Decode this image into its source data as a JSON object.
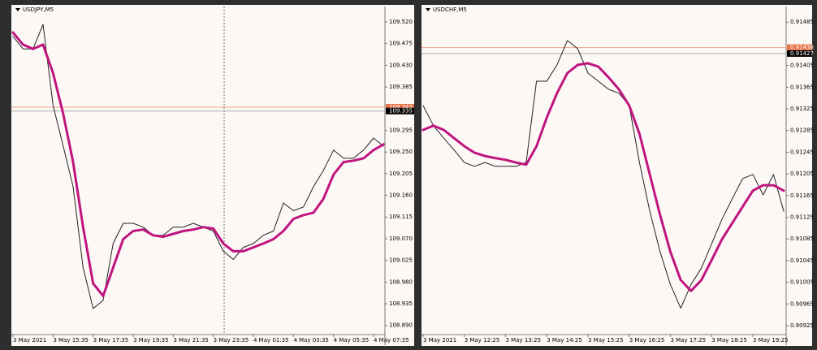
{
  "chart_data": [
    {
      "type": "line",
      "title": "USDJPY,M5",
      "categories": [
        "3 May 2021",
        null,
        null,
        null,
        "3 May 15:35",
        null,
        null,
        null,
        "3 May 17:35",
        null,
        null,
        null,
        "3 May 19:35",
        null,
        null,
        null,
        "3 May 21:35",
        null,
        null,
        null,
        "3 May 23:35",
        null,
        null,
        null,
        "4 May 01:35",
        null,
        null,
        null,
        "4 May 03:35",
        null,
        null,
        null,
        "4 May 05:35",
        null,
        null,
        null,
        "4 May 07:35",
        null
      ],
      "series": [
        {
          "color": "#222222",
          "values": [
            109.49,
            109.464,
            109.464,
            109.515,
            109.347,
            109.263,
            109.178,
            109.01,
            108.925,
            108.942,
            109.06,
            109.102,
            109.102,
            109.094,
            109.077,
            109.077,
            109.094,
            109.094,
            109.102,
            109.094,
            109.086,
            109.044,
            109.027,
            109.052,
            109.06,
            109.077,
            109.086,
            109.144,
            109.128,
            109.136,
            109.178,
            109.212,
            109.254,
            109.237,
            109.237,
            109.254,
            109.279,
            109.262
          ]
        },
        {
          "color": "#c0147f",
          "values": [
            109.498,
            109.473,
            109.464,
            109.473,
            109.414,
            109.33,
            109.229,
            109.094,
            108.977,
            108.951,
            109.01,
            109.069,
            109.086,
            109.089,
            109.077,
            109.074,
            109.08,
            109.086,
            109.089,
            109.094,
            109.091,
            109.06,
            109.044,
            109.044,
            109.052,
            109.06,
            109.069,
            109.086,
            109.111,
            109.119,
            109.124,
            109.153,
            109.203,
            109.229,
            109.232,
            109.237,
            109.254,
            109.266
          ]
        }
      ],
      "levels": [
        {
          "value": 109.343,
          "color": "#e8734a"
        },
        {
          "value": 109.335,
          "color": "#000000"
        }
      ],
      "ylim": [
        108.871,
        109.552
      ],
      "yticks": [
        {
          "value": 109.52,
          "label": "109.520"
        },
        109.475,
        {
          "value": 109.43,
          "label": "109.430"
        },
        109.385,
        109.295,
        {
          "value": 109.25,
          "label": "109.250"
        },
        109.205,
        {
          "value": 109.16,
          "label": "109.160"
        },
        109.115,
        {
          "value": 109.07,
          "label": "109.070"
        },
        109.025,
        {
          "value": 108.98,
          "label": "108.980"
        },
        108.935,
        {
          "value": 108.89,
          "label": "108.890"
        }
      ]
    },
    {
      "type": "line",
      "title": "USDCHF,M5",
      "categories": [
        "3 May 2021",
        null,
        null,
        null,
        "3 May 12:25",
        null,
        null,
        null,
        "3 May 13:25",
        null,
        null,
        null,
        "3 May 14:25",
        null,
        null,
        null,
        "3 May 15:25",
        null,
        null,
        null,
        "3 May 16:25",
        null,
        null,
        null,
        "3 May 17:25",
        null,
        null,
        null,
        "3 May 18:25",
        null,
        null,
        null,
        "3 May 19:25",
        null,
        null,
        null
      ],
      "series": [
        {
          "color": "#222222",
          "values": [
            0.91331,
            0.91294,
            0.91271,
            0.91249,
            0.91226,
            0.91219,
            0.91226,
            0.91219,
            0.91219,
            0.91219,
            0.91226,
            0.91376,
            0.91376,
            0.91406,
            0.91451,
            0.91436,
            0.91391,
            0.91376,
            0.91361,
            0.91354,
            0.91331,
            0.91226,
            0.91136,
            0.91061,
            0.91001,
            0.90957,
            0.91001,
            0.91031,
            0.91076,
            0.91121,
            0.91159,
            0.91196,
            0.91204,
            0.91166,
            0.91204,
            0.91136
          ]
        },
        {
          "color": "#c0147f",
          "values": [
            0.91286,
            0.91294,
            0.91286,
            0.91271,
            0.91256,
            0.91244,
            0.91238,
            0.91234,
            0.91231,
            0.91226,
            0.91222,
            0.91256,
            0.91309,
            0.91354,
            0.91391,
            0.91406,
            0.91409,
            0.91403,
            0.91383,
            0.91361,
            0.91331,
            0.91279,
            0.91204,
            0.91129,
            0.91061,
            0.91009,
            0.90989,
            0.91009,
            0.91046,
            0.91084,
            0.91114,
            0.91144,
            0.91174,
            0.91184,
            0.91184,
            0.91174
          ]
        }
      ],
      "levels": [
        {
          "value": 0.91438,
          "color": "#e8734a"
        },
        {
          "value": 0.91427,
          "color": "#000000"
        }
      ],
      "ylim": [
        0.909085,
        0.915138
      ],
      "yticks": [
        0.91485,
        0.91405,
        0.91365,
        0.91325,
        0.91285,
        0.91245,
        0.91205,
        0.91165,
        0.91125,
        0.91085,
        0.91045,
        0.91005,
        0.90965,
        0.90925
      ]
    }
  ]
}
